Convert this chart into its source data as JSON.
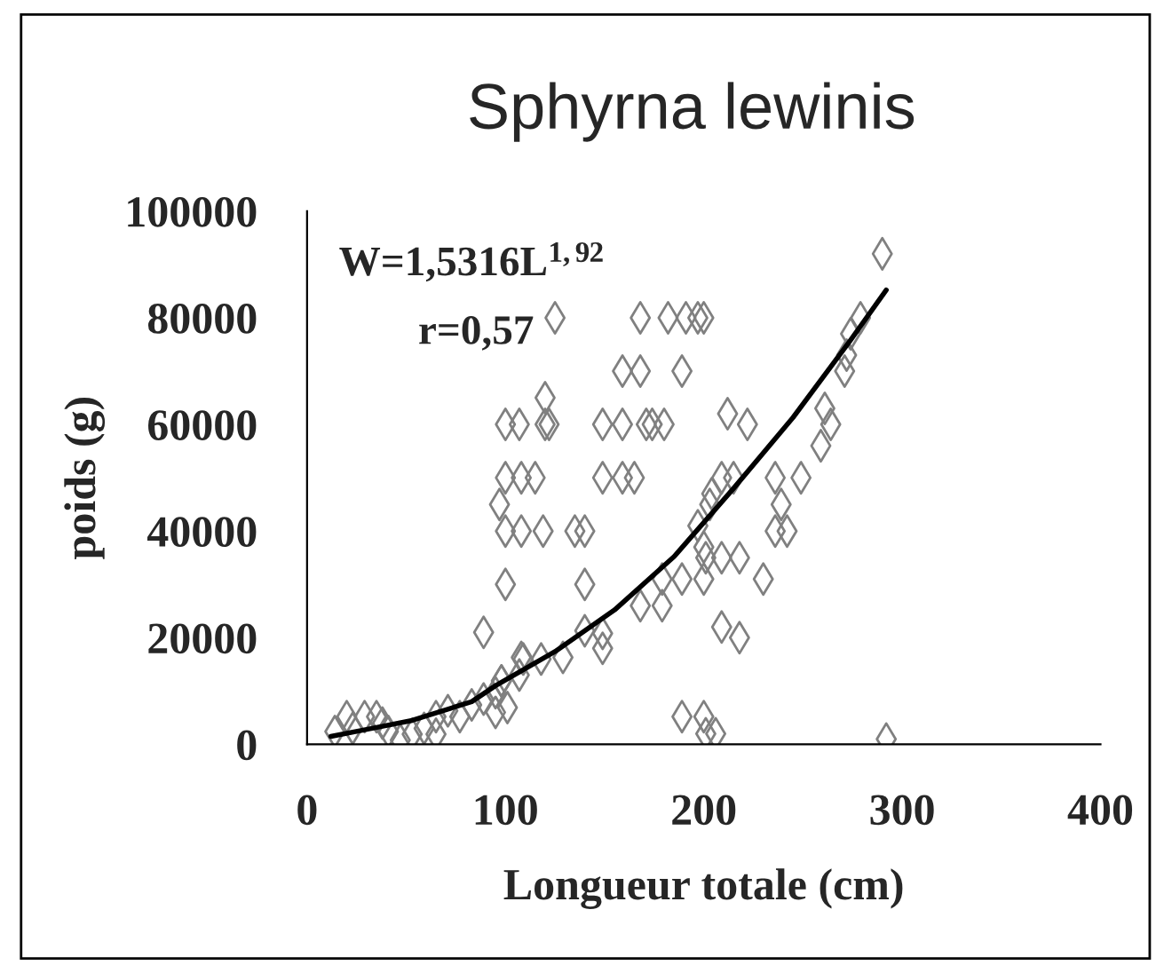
{
  "chart_data": {
    "type": "scatter",
    "title": "Sphyrna lewinis",
    "xlabel": "Longueur totale (cm)",
    "ylabel": "poids (g)",
    "xlim": [
      0,
      400
    ],
    "xticks": [
      0,
      100,
      200,
      300,
      400
    ],
    "ylim": [
      0,
      100000
    ],
    "yticks": [
      0,
      20000,
      40000,
      60000,
      80000,
      100000
    ],
    "grid": false,
    "marker": "diamond",
    "annotations": [
      {
        "text": "W=1,5316L$^{1,92}$"
      },
      {
        "text": "r=0,57"
      }
    ],
    "series": [
      {
        "color": "#808080",
        "x": [
          14,
          20,
          23,
          29,
          35,
          38,
          41,
          47,
          53,
          59,
          65,
          71,
          77,
          83,
          89,
          95,
          98,
          101,
          107,
          108,
          95,
          65,
          89,
          97,
          100,
          107,
          100,
          108,
          115,
          100,
          108,
          119,
          135,
          140,
          100,
          140,
          98,
          109,
          118,
          129,
          140,
          149,
          149,
          125,
          168,
          182,
          191,
          197,
          200,
          159,
          168,
          189,
          120,
          122,
          120,
          149,
          159,
          171,
          174,
          180,
          212,
          222,
          149,
          159,
          165,
          209,
          215,
          236,
          249,
          239,
          236,
          242,
          203,
          204,
          261,
          264,
          259,
          279,
          274,
          272,
          271,
          290,
          197,
          200,
          201,
          209,
          218,
          230,
          179,
          189,
          200,
          168,
          179,
          209,
          218,
          189,
          200,
          201,
          206,
          292
        ],
        "values": [
          2400,
          5200,
          3000,
          5200,
          5200,
          4000,
          2400,
          800,
          1900,
          3000,
          5200,
          6300,
          5200,
          7400,
          8500,
          9700,
          11900,
          6900,
          13000,
          16300,
          6000,
          1900,
          21000,
          45000,
          60000,
          60000,
          50000,
          50000,
          50000,
          40000,
          40000,
          40000,
          40000,
          40000,
          30000,
          30000,
          11900,
          16000,
          16000,
          16300,
          21300,
          20800,
          18000,
          80000,
          80000,
          80000,
          80000,
          80000,
          80000,
          70000,
          70000,
          70000,
          65000,
          60000,
          60000,
          60000,
          60000,
          60000,
          60000,
          60000,
          62000,
          60000,
          50000,
          50000,
          50000,
          50000,
          50000,
          50000,
          50000,
          45000,
          40000,
          40000,
          45000,
          47000,
          63000,
          60000,
          56000,
          80000,
          77000,
          73000,
          70000,
          92000,
          41000,
          37000,
          35000,
          35000,
          35000,
          31000,
          31000,
          31000,
          31000,
          26000,
          26000,
          22000,
          20000,
          5200,
          5200,
          2000,
          2000,
          1000
        ]
      },
      {
        "type": "line",
        "color": "#000000",
        "marker": "none",
        "line_style": "solid",
        "x": [
          12,
          30,
          53,
          83,
          95,
          125,
          155,
          185,
          215,
          245,
          274,
          292
        ],
        "values": [
          1500,
          2800,
          4500,
          8000,
          11000,
          17400,
          25200,
          35200,
          48000,
          61300,
          75800,
          85200
        ]
      }
    ]
  }
}
